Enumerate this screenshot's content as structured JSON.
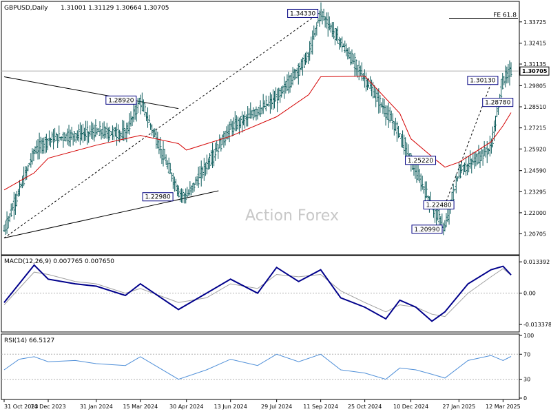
{
  "chart_data": [
    {
      "type": "line",
      "panel": "price",
      "symbol_header": "GBPUSD,Daily",
      "ohlc_header": "1.31001 1.31129 1.30664 1.30705",
      "watermark": "Action Forex",
      "ylim": [
        1.195,
        1.349
      ],
      "y_ticks": [
        "1.33725",
        "1.32415",
        "1.31135",
        "1.29805",
        "1.28510",
        "1.27215",
        "1.25920",
        "1.24590",
        "1.23295",
        "1.22000",
        "1.20705"
      ],
      "y_tick_values": [
        1.33725,
        1.32415,
        1.31135,
        1.29805,
        1.2851,
        1.27215,
        1.2592,
        1.2459,
        1.23295,
        1.22,
        1.20705
      ],
      "last_price_label": "1.30705",
      "last_price": 1.30705,
      "fib_label": "FE 61.8",
      "fib_level": 1.3395,
      "x": [
        "2023-10-31",
        "2023-11-30",
        "2023-12-14",
        "2024-01-31",
        "2024-02-29",
        "2024-03-15",
        "2024-04-22",
        "2024-04-30",
        "2024-06-13",
        "2024-07-29",
        "2024-08-30",
        "2024-09-11",
        "2024-10-25",
        "2024-11-29",
        "2024-12-10",
        "2024-12-31",
        "2025-01-13",
        "2025-01-27",
        "2025-02-28",
        "2025-03-12",
        "2025-03-20"
      ],
      "series": [
        {
          "values": [
            1.209,
            1.2575,
            1.265,
            1.27,
            1.2685,
            1.289,
            1.233,
            1.2298,
            1.272,
            1.29,
            1.3165,
            1.3433,
            1.3025,
            1.2685,
            1.2522,
            1.2245,
            1.2099,
            1.2448,
            1.2601,
            1.3013,
            1.3071
          ]
        },
        {
          "values": [
            1.234,
            1.2445,
            1.2535,
            1.2615,
            1.2655,
            1.2675,
            1.2625,
            1.2585,
            1.267,
            1.279,
            1.2925,
            1.3035,
            1.304,
            1.281,
            1.2655,
            1.2545,
            1.248,
            1.251,
            1.2635,
            1.2735,
            1.2815
          ]
        }
      ],
      "callouts": [
        {
          "label": "1.34330",
          "x": "2024-09-11",
          "y": 1.3433
        },
        {
          "label": "1.28920",
          "x": "2024-03-15",
          "y": 1.2892
        },
        {
          "label": "1.22980",
          "x": "2024-04-22",
          "y": 1.2298
        },
        {
          "label": "1.30130",
          "x": "2025-02-28",
          "y": 1.3013
        },
        {
          "label": "1.28780",
          "x": "2025-03-04",
          "y": 1.2878
        },
        {
          "label": "1.25220",
          "x": "2024-12-10",
          "y": 1.2522
        },
        {
          "label": "1.22480",
          "x": "2024-12-31",
          "y": 1.2248
        },
        {
          "label": "1.20990",
          "x": "2025-01-13",
          "y": 1.2099
        }
      ],
      "trendlines": [
        {
          "x1": "2023-10-31",
          "y1": 1.3035,
          "x2": "2024-04-22",
          "y2": 1.284
        },
        {
          "x1": "2023-10-31",
          "y1": 1.2045,
          "x2": "2024-06-01",
          "y2": 1.2335
        },
        {
          "x1": "2023-10-31",
          "y1": 1.2045,
          "x2": "2024-09-11",
          "y2": 1.3433
        },
        {
          "x1": "2025-01-13",
          "y1": 1.2248,
          "x2": "2025-02-28",
          "y2": 1.2995
        }
      ]
    },
    {
      "type": "line",
      "panel": "macd",
      "header": "MACD(12,26,9) 0.007765 0.007650",
      "ylim": [
        -0.016,
        0.0155
      ],
      "y_ticks": [
        "0.013392",
        "0.00",
        "-0.013378"
      ],
      "y_tick_values": [
        0.013392,
        0,
        -0.013378
      ],
      "x": [
        "2023-10-31",
        "2023-11-30",
        "2023-12-14",
        "2024-01-10",
        "2024-01-31",
        "2024-02-29",
        "2024-03-15",
        "2024-04-22",
        "2024-05-20",
        "2024-06-13",
        "2024-07-10",
        "2024-07-29",
        "2024-08-20",
        "2024-09-11",
        "2024-10-01",
        "2024-10-25",
        "2024-11-15",
        "2024-11-29",
        "2024-12-15",
        "2024-12-31",
        "2025-01-13",
        "2025-02-05",
        "2025-02-28",
        "2025-03-12",
        "2025-03-20"
      ],
      "series": [
        {
          "values": [
            -0.004,
            0.012,
            0.006,
            0.004,
            0.003,
            -0.001,
            0.004,
            -0.007,
            0.0,
            0.006,
            0.0,
            0.011,
            0.005,
            0.01,
            -0.002,
            -0.006,
            -0.011,
            -0.003,
            -0.006,
            -0.012,
            -0.008,
            0.004,
            0.01,
            0.0115,
            0.0078
          ]
        },
        {
          "values": [
            -0.005,
            0.009,
            0.008,
            0.005,
            0.004,
            0.0,
            0.002,
            -0.004,
            -0.002,
            0.004,
            0.002,
            0.008,
            0.007,
            0.008,
            0.001,
            -0.004,
            -0.008,
            -0.005,
            -0.006,
            -0.009,
            -0.01,
            0.0,
            0.007,
            0.0105,
            0.0077
          ]
        }
      ]
    },
    {
      "type": "line",
      "panel": "rsi",
      "header": "RSI(14) 66.5127",
      "ylim": [
        0,
        100
      ],
      "y_ticks": [
        "100",
        "70",
        "30",
        "0"
      ],
      "y_tick_values": [
        100,
        70,
        30,
        0
      ],
      "x": [
        "2023-10-31",
        "2023-11-15",
        "2023-11-30",
        "2023-12-14",
        "2024-01-10",
        "2024-01-31",
        "2024-02-29",
        "2024-03-15",
        "2024-04-22",
        "2024-05-20",
        "2024-06-13",
        "2024-07-10",
        "2024-07-29",
        "2024-08-20",
        "2024-09-11",
        "2024-10-01",
        "2024-10-25",
        "2024-11-15",
        "2024-11-29",
        "2024-12-15",
        "2024-12-31",
        "2025-01-13",
        "2025-02-05",
        "2025-02-28",
        "2025-03-12",
        "2025-03-20"
      ],
      "series": [
        {
          "values": [
            45,
            62,
            66,
            58,
            60,
            55,
            52,
            66,
            30,
            45,
            62,
            52,
            70,
            58,
            70,
            45,
            40,
            30,
            48,
            45,
            38,
            32,
            60,
            68,
            60,
            66.5
          ]
        }
      ]
    }
  ],
  "x_axis_labels": [
    "31 Oct 2023",
    "14 Dec 2023",
    "31 Jan 2024",
    "15 Mar 2024",
    "30 Apr 2024",
    "13 Jun 2024",
    "29 Jul 2024",
    "11 Sep 2024",
    "25 Oct 2024",
    "10 Dec 2024",
    "27 Jan 2025",
    "12 Mar 2025"
  ],
  "x_axis_dates": [
    "2023-10-31",
    "2023-12-14",
    "2024-01-31",
    "2024-03-15",
    "2024-04-30",
    "2024-06-13",
    "2024-07-29",
    "2024-09-11",
    "2024-10-25",
    "2024-12-10",
    "2025-01-27",
    "2025-03-12"
  ],
  "colors": {
    "price_bars": "#0a5a5a",
    "moving_average": "#d40000",
    "macd_line": "#00008b",
    "signal_line": "#a0a0a0",
    "rsi_line": "#4f8fd8",
    "callout_border": "#000080",
    "trendline": "#000000",
    "grid": "#b0b0b0"
  }
}
